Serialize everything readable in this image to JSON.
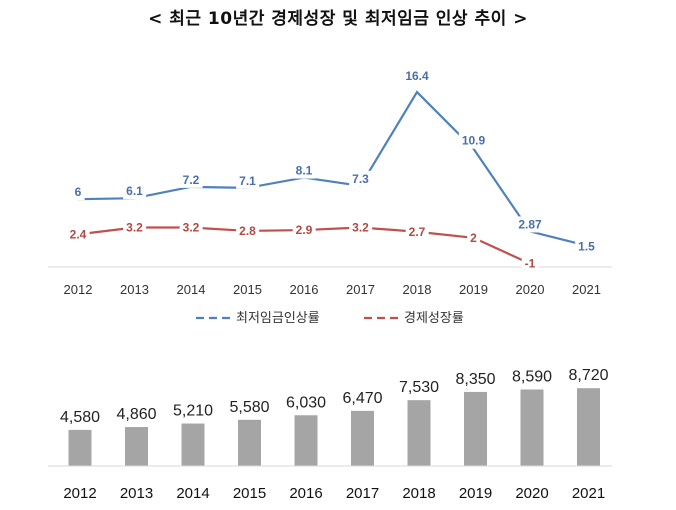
{
  "title": "< 최근 10년간 경제성장 및 최저임금 인상 추이 >",
  "chart_data": [
    {
      "type": "line",
      "categories": [
        "2012",
        "2013",
        "2014",
        "2015",
        "2016",
        "2017",
        "2018",
        "2019",
        "2020",
        "2021"
      ],
      "series": [
        {
          "name": "최저임금인상률",
          "color": "#4f81bd",
          "dash": "dashed-legend",
          "values": [
            6,
            6.1,
            7.2,
            7.1,
            8.1,
            7.3,
            16.4,
            10.9,
            2.87,
            1.5
          ],
          "labels": [
            "6",
            "6.1",
            "7.2",
            "7.1",
            "8.1",
            "7.3",
            "16.4",
            "10.9",
            "2.87",
            "1.5"
          ]
        },
        {
          "name": "경제성장률",
          "color": "#c0504d",
          "dash": "dashed-legend",
          "values": [
            2.4,
            3.2,
            3.2,
            2.8,
            2.9,
            3.2,
            2.7,
            2,
            -1,
            null
          ],
          "labels": [
            "2.4",
            "3.2",
            "3.2",
            "2.8",
            "2.9",
            "3.2",
            "2.7",
            "2",
            "-1",
            ""
          ]
        }
      ],
      "legend": "bottom",
      "grid": false
    },
    {
      "type": "bar",
      "categories": [
        "2012",
        "2013",
        "2014",
        "2015",
        "2016",
        "2017",
        "2018",
        "2019",
        "2020",
        "2021"
      ],
      "values": [
        4580,
        4860,
        5210,
        5580,
        6030,
        6470,
        7530,
        8350,
        8590,
        8720
      ],
      "labels": [
        "4,580",
        "4,860",
        "5,210",
        "5,580",
        "6,030",
        "6,470",
        "7,530",
        "8,350",
        "8,590",
        "8,720"
      ],
      "color": "#a5a5a5",
      "grid": false
    }
  ]
}
